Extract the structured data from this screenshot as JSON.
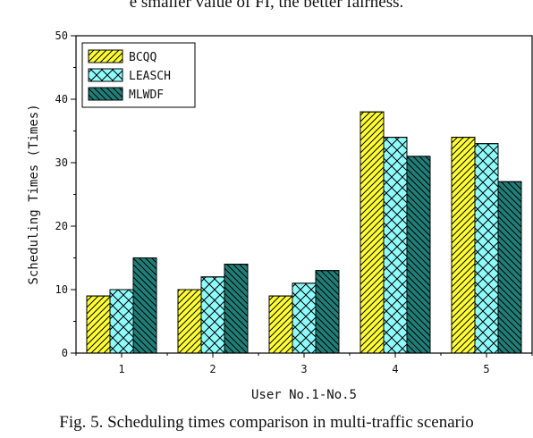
{
  "page": {
    "top_text": "e smaller value of FI, the better fairness.",
    "caption": "Fig. 5. Scheduling times comparison in multi-traffic scenario"
  },
  "chart_data": {
    "type": "bar",
    "title": "",
    "xlabel": "User No.1-No.5",
    "ylabel": "Scheduling Times (Times)",
    "categories": [
      "1",
      "2",
      "3",
      "4",
      "5"
    ],
    "ylim": [
      0,
      50
    ],
    "yticks": [
      0,
      10,
      20,
      30,
      40,
      50
    ],
    "grid": false,
    "legend_position": "top-left",
    "series": [
      {
        "name": "BCQQ",
        "values": [
          9,
          10,
          9,
          38,
          34
        ],
        "color": "#ffff33",
        "pattern": "forward-diagonal"
      },
      {
        "name": "LEASCH",
        "values": [
          10,
          12,
          11,
          34,
          33
        ],
        "color": "#8ffcfc",
        "pattern": "cross-hatch"
      },
      {
        "name": "MLWDF",
        "values": [
          15,
          14,
          13,
          31,
          27
        ],
        "color": "#1f7f78",
        "pattern": "back-diagonal"
      }
    ]
  }
}
